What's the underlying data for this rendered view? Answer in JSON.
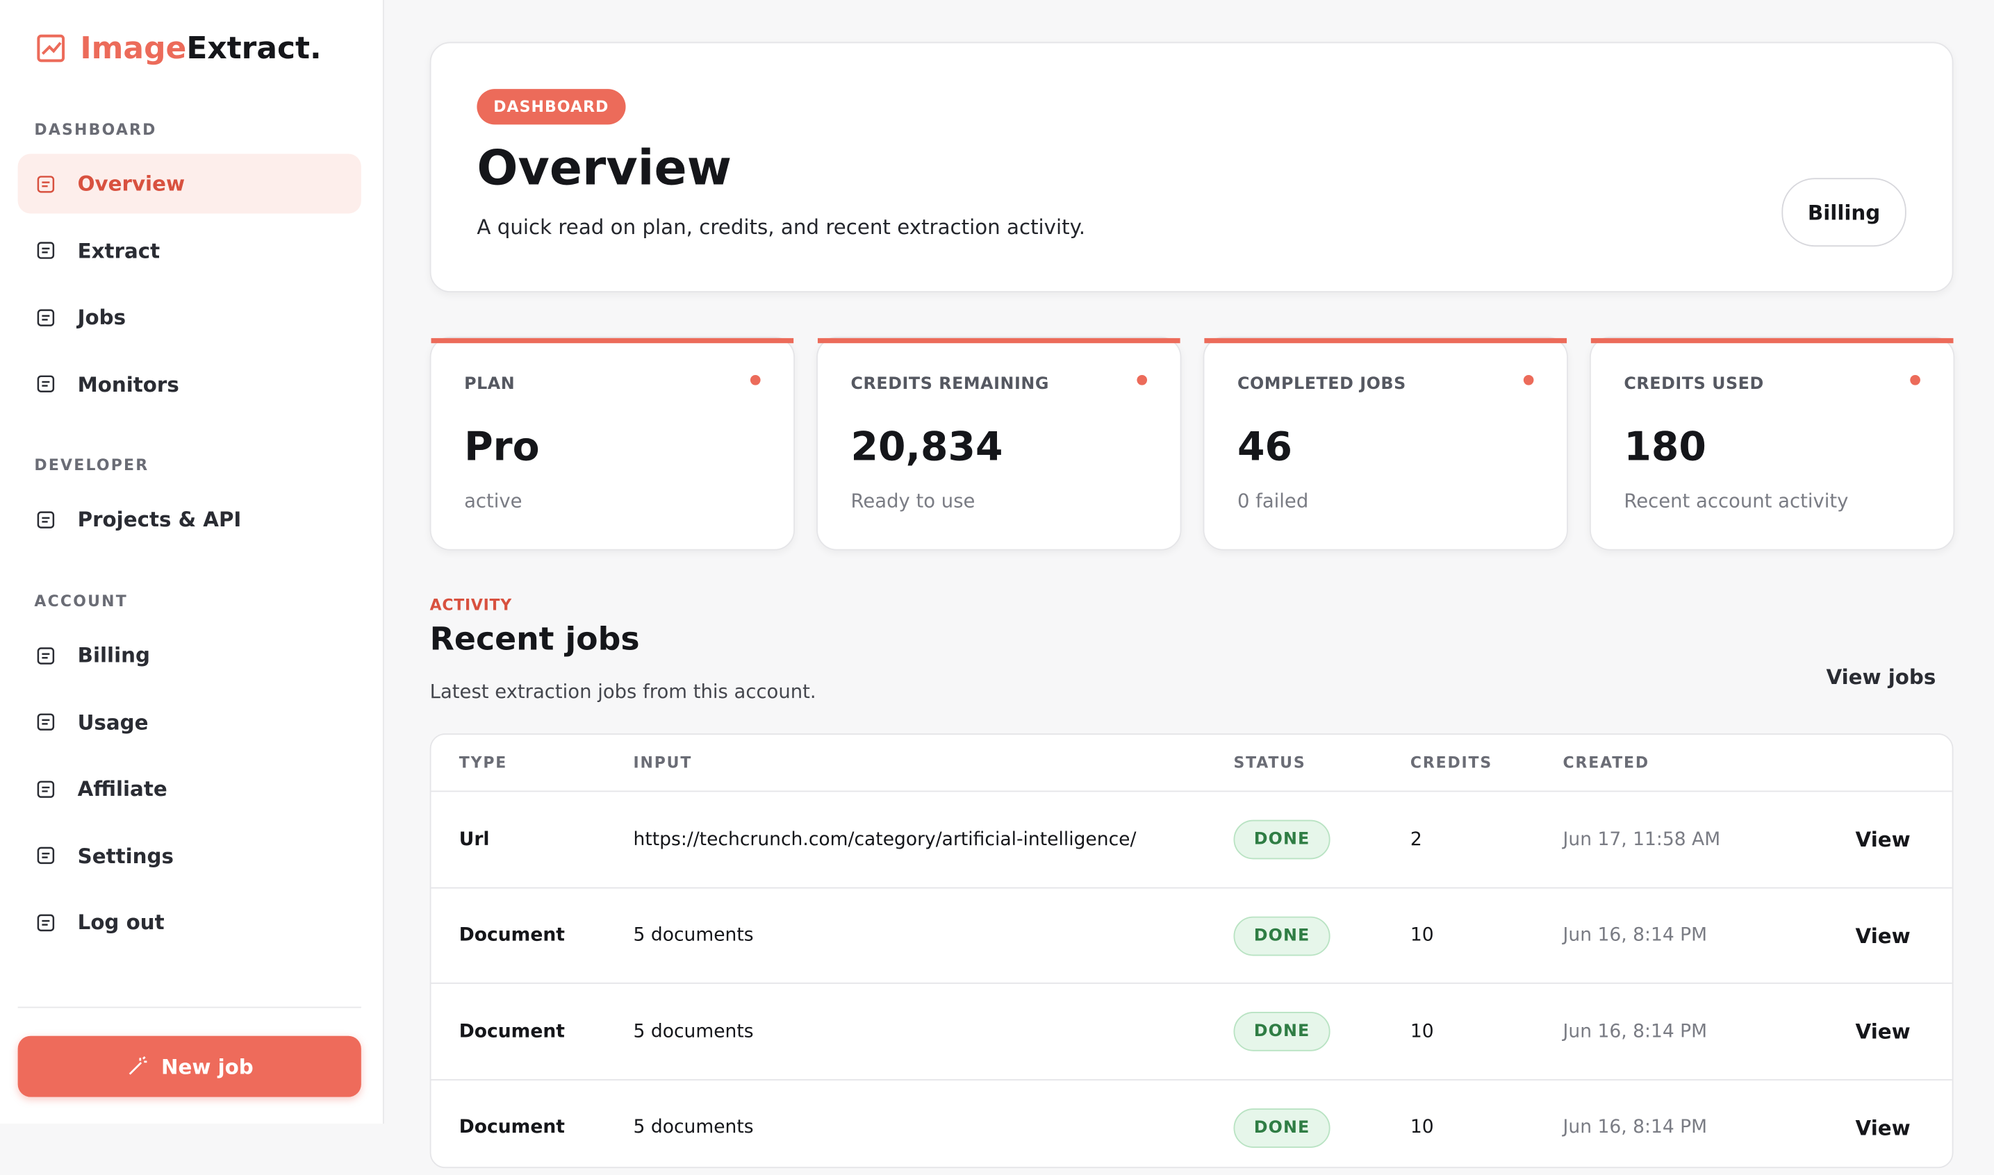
{
  "brand": {
    "name_accent": "Image",
    "name_rest": "Extract."
  },
  "sidebar": {
    "sections": [
      {
        "title": "DASHBOARD",
        "items": [
          "Overview",
          "Extract",
          "Jobs",
          "Monitors"
        ]
      },
      {
        "title": "DEVELOPER",
        "items": [
          "Projects & API"
        ]
      },
      {
        "title": "ACCOUNT",
        "items": [
          "Billing",
          "Usage",
          "Affiliate",
          "Settings",
          "Log out"
        ]
      }
    ],
    "cta": "New job"
  },
  "header": {
    "badge": "DASHBOARD",
    "title": "Overview",
    "subtitle": "A quick read on plan, credits, and recent extraction activity.",
    "button": "Billing"
  },
  "stats": [
    {
      "label": "PLAN",
      "value": "Pro",
      "note": "active"
    },
    {
      "label": "CREDITS REMAINING",
      "value": "20,834",
      "note": "Ready to use"
    },
    {
      "label": "COMPLETED JOBS",
      "value": "46",
      "note": "0 failed"
    },
    {
      "label": "CREDITS USED",
      "value": "180",
      "note": "Recent account activity"
    }
  ],
  "activity": {
    "eyebrow": "ACTIVITY",
    "title": "Recent jobs",
    "subtitle": "Latest extraction jobs from this account.",
    "link": "View jobs"
  },
  "table": {
    "columns": [
      "TYPE",
      "INPUT",
      "STATUS",
      "CREDITS",
      "CREATED"
    ],
    "rows": [
      [
        "Url",
        "https://techcrunch.com/category/artificial-intelligence/",
        "DONE",
        "2",
        "Jun 17, 11:58 AM",
        "View"
      ],
      [
        "Document",
        "5 documents",
        "DONE",
        "10",
        "Jun 16, 8:14 PM",
        "View"
      ],
      [
        "Document",
        "5 documents",
        "DONE",
        "10",
        "Jun 16, 8:14 PM",
        "View"
      ],
      [
        "Document",
        "5 documents",
        "DONE",
        "10",
        "Jun 16, 8:14 PM",
        "View"
      ]
    ]
  }
}
